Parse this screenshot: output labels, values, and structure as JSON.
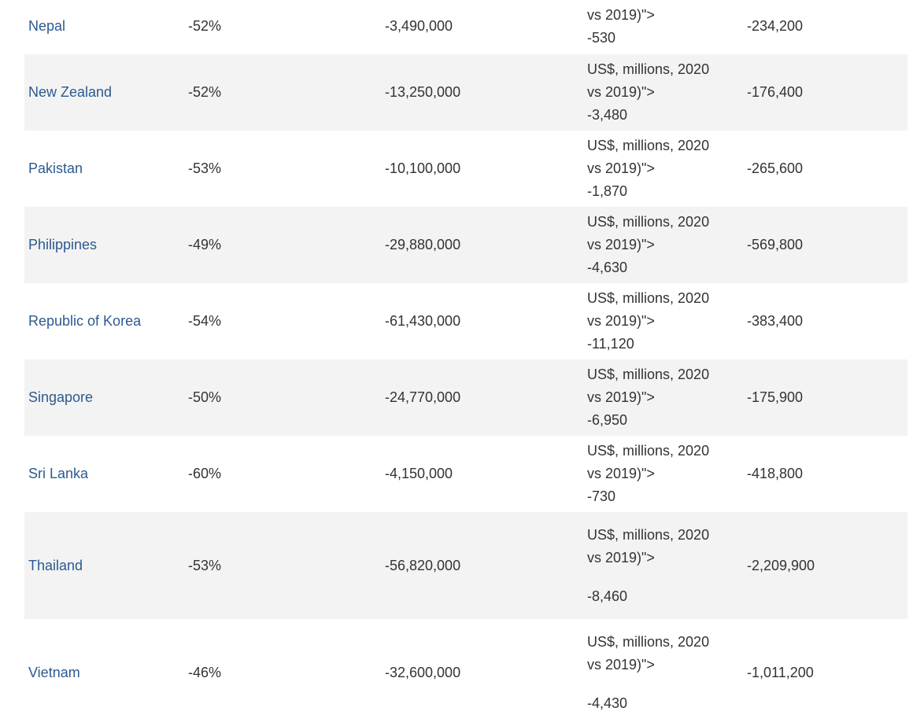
{
  "table": {
    "rows": [
      {
        "country": "Nepal",
        "pct": "-52%",
        "arrivals": "-3,490,000",
        "receipts_note": [
          "vs 2019)\">"
        ],
        "receipts_value": "-530",
        "jobs": "-234,200"
      },
      {
        "country": "New Zealand",
        "pct": "-52%",
        "arrivals": "-13,250,000",
        "receipts_note": [
          "US$, millions, 2020",
          "vs 2019)\">"
        ],
        "receipts_value": "-3,480",
        "jobs": "-176,400"
      },
      {
        "country": "Pakistan",
        "pct": "-53%",
        "arrivals": "-10,100,000",
        "receipts_note": [
          "US$, millions, 2020",
          "vs 2019)\">"
        ],
        "receipts_value": "-1,870",
        "jobs": "-265,600"
      },
      {
        "country": "Philippines",
        "pct": "-49%",
        "arrivals": "-29,880,000",
        "receipts_note": [
          "US$, millions, 2020",
          "vs 2019)\">"
        ],
        "receipts_value": "-4,630",
        "jobs": "-569,800"
      },
      {
        "country": "Republic of Korea",
        "pct": "-54%",
        "arrivals": "-61,430,000",
        "receipts_note": [
          "US$, millions, 2020",
          "vs 2019)\">"
        ],
        "receipts_value": "-11,120",
        "jobs": "-383,400"
      },
      {
        "country": "Singapore",
        "pct": "-50%",
        "arrivals": "-24,770,000",
        "receipts_note": [
          "US$, millions, 2020",
          "vs 2019)\">"
        ],
        "receipts_value": "-6,950",
        "jobs": "-175,900"
      },
      {
        "country": "Sri Lanka",
        "pct": "-60%",
        "arrivals": "-4,150,000",
        "receipts_note": [
          "US$, millions, 2020",
          "vs 2019)\">"
        ],
        "receipts_value": "-730",
        "jobs": "-418,800"
      },
      {
        "country": "Thailand",
        "pct": "-53%",
        "arrivals": "-56,820,000",
        "receipts_note": [
          "US$, millions, 2020",
          "vs 2019)\">"
        ],
        "receipts_value": "-8,460",
        "jobs": "-2,209,900"
      },
      {
        "country": "Vietnam",
        "pct": "-46%",
        "arrivals": "-32,600,000",
        "receipts_note": [
          "US$, millions, 2020",
          "vs 2019)\">"
        ],
        "receipts_value": "-4,430",
        "jobs": "-1,011,200"
      }
    ]
  }
}
